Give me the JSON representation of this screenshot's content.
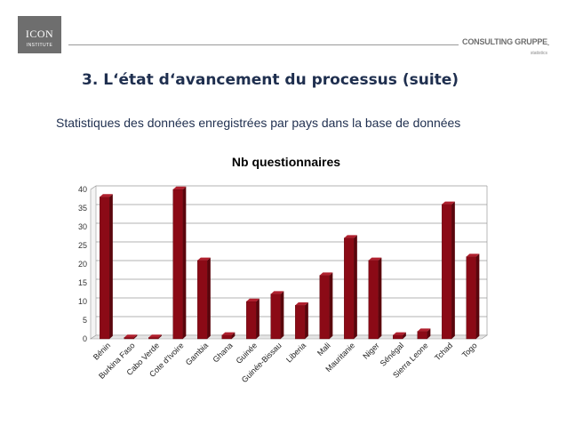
{
  "logo": {
    "main": "ICON",
    "sub": "INSTITUTE"
  },
  "brand": {
    "name": "CONSULTING GRUPPE",
    "sub": "statistics"
  },
  "slide": {
    "title": "3. L‘état d‘avancement du processus (suite)",
    "subtitle": "Statistiques des données enregistrées par pays dans la base de données"
  },
  "colors": {
    "bar": "#8b0a16",
    "bar_dark": "#5a050c",
    "bar_top": "#b0202e"
  },
  "chart_data": {
    "type": "bar",
    "title": "Nb questionnaires",
    "categories": [
      "Bénin",
      "Burkina Faso",
      "Cabo Verde",
      "Cote d'Ivoire",
      "Gambia",
      "Ghana",
      "Guinée",
      "Guinée-Bissau",
      "Liberia",
      "Mali",
      "Mauritanie",
      "Niger",
      "Sénégal",
      "Sierra Leone",
      "Tchad",
      "Togo"
    ],
    "values": [
      38,
      0,
      0,
      40,
      21,
      1,
      10,
      12,
      9,
      17,
      27,
      21,
      1,
      2,
      36,
      22
    ],
    "ylim": [
      0,
      40
    ],
    "yticks": [
      0,
      5,
      10,
      15,
      20,
      25,
      30,
      35,
      40
    ],
    "xlabel": "",
    "ylabel": "",
    "grid": true,
    "legend": "none"
  }
}
